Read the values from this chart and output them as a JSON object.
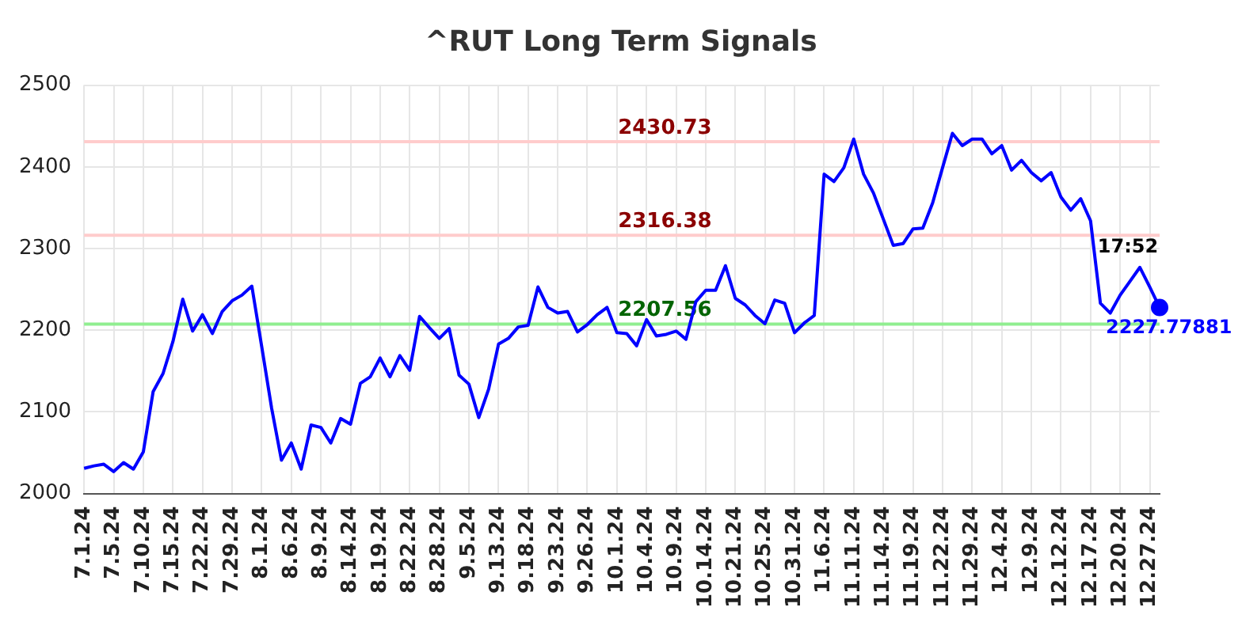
{
  "chart_data": {
    "type": "line",
    "title": "^RUT Long Term Signals",
    "categories": [
      "7.1.24",
      null,
      null,
      "7.5.24",
      null,
      null,
      "7.10.24",
      null,
      null,
      "7.15.24",
      null,
      null,
      "7.22.24",
      null,
      null,
      "7.29.24",
      null,
      null,
      "8.1.24",
      null,
      null,
      "8.6.24",
      null,
      null,
      "8.9.24",
      null,
      null,
      "8.14.24",
      null,
      null,
      "8.19.24",
      null,
      null,
      "8.22.24",
      null,
      null,
      "8.28.24",
      null,
      null,
      "9.5.24",
      null,
      null,
      "9.13.24",
      null,
      null,
      "9.18.24",
      null,
      null,
      "9.23.24",
      null,
      null,
      "9.26.24",
      null,
      null,
      "10.1.24",
      null,
      null,
      "10.4.24",
      null,
      null,
      "10.9.24",
      null,
      null,
      "10.14.24",
      null,
      null,
      "10.21.24",
      null,
      null,
      "10.25.24",
      null,
      null,
      "10.31.24",
      null,
      null,
      "11.6.24",
      null,
      null,
      "11.11.24",
      null,
      null,
      "11.14.24",
      null,
      null,
      "11.19.24",
      null,
      null,
      "11.22.24",
      null,
      null,
      "11.29.24",
      null,
      null,
      "12.4.24",
      null,
      null,
      "12.9.24",
      null,
      null,
      "12.12.24",
      null,
      null,
      "12.17.24",
      null,
      null,
      "12.20.24",
      null,
      null,
      "12.27.24",
      null
    ],
    "series": [
      {
        "color": "#0000ff",
        "values": [
          2031,
          2034,
          2036,
          2027,
          2038,
          2030,
          2051,
          2125,
          2147,
          2186,
          2238,
          2199,
          2219,
          2196,
          2223,
          2236,
          2243,
          2254,
          2180,
          2105,
          2041,
          2062,
          2030,
          2084,
          2081,
          2062,
          2092,
          2085,
          2135,
          2143,
          2166,
          2143,
          2169,
          2151,
          2217,
          2203,
          2190,
          2202,
          2145,
          2134,
          2093,
          2128,
          2183,
          2190,
          2204,
          2206,
          2253,
          2228,
          2221,
          2223,
          2198,
          2207,
          2219,
          2228,
          2197,
          2196,
          2181,
          2213,
          2193,
          2195,
          2199,
          2189,
          2235,
          2249,
          2249,
          2279,
          2239,
          2231,
          2218,
          2208,
          2237,
          2233,
          2197,
          2209,
          2218,
          2391,
          2382,
          2399,
          2434,
          2391,
          2368,
          2336,
          2304,
          2306,
          2324,
          2325,
          2356,
          2399,
          2441,
          2426,
          2434,
          2434,
          2416,
          2426,
          2396,
          2408,
          2393,
          2383,
          2393,
          2363,
          2347,
          2361,
          2334,
          2233,
          2221,
          2243,
          2260,
          2277,
          2253,
          2227.77881
        ],
        "value_labels": [
          null,
          null,
          null,
          null,
          null,
          null,
          null,
          null,
          null,
          null,
          null,
          null,
          null,
          null,
          null,
          null,
          null,
          null,
          null,
          null,
          null,
          null,
          null,
          null,
          null,
          null,
          null,
          null,
          null,
          null,
          null,
          null,
          null,
          null,
          null,
          null,
          null,
          null,
          null,
          null,
          null,
          null,
          null,
          null,
          null,
          null,
          null,
          null,
          null,
          null,
          null,
          null,
          null,
          null,
          null,
          null,
          null,
          null,
          null,
          null,
          null,
          null,
          null,
          null,
          null,
          null,
          null,
          null,
          null,
          null,
          null,
          null,
          null,
          null,
          null,
          null,
          null,
          null,
          null,
          null,
          null,
          null,
          null,
          null,
          null,
          null,
          null,
          null,
          null,
          null,
          null,
          null,
          null,
          null,
          null,
          null,
          null,
          null,
          null,
          null,
          null,
          null,
          null,
          null,
          null,
          null,
          null,
          null,
          null,
          "2227.77881"
        ]
      }
    ],
    "ylim": [
      2000,
      2500
    ],
    "yticks": [
      2000,
      2100,
      2200,
      2300,
      2400,
      2500
    ],
    "grid": true,
    "legend": false,
    "marker": "none",
    "line_style": "solid",
    "ref_lines": [
      {
        "axis": "y",
        "value": 2430.73,
        "label": "2430.73",
        "color": "#ffcccc"
      },
      {
        "axis": "y",
        "value": 2316.38,
        "label": "2316.38",
        "color": "#ffcccc"
      },
      {
        "axis": "y",
        "value": 2207.56,
        "label": "2207.56",
        "color": "#90ee90"
      }
    ],
    "annotations": [
      "17:52"
    ]
  }
}
